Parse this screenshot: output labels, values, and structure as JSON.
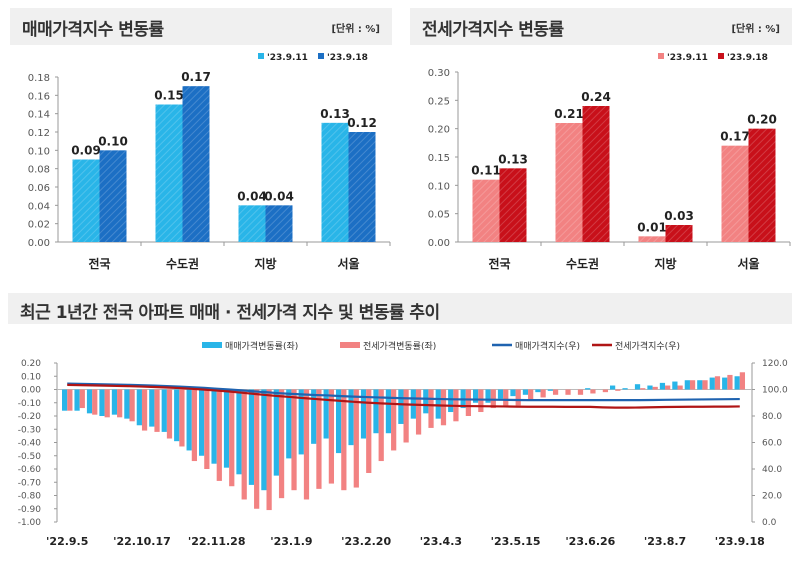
{
  "charts_top": [
    {
      "title": "매매가격지수 변동률",
      "unit": "[단위 : %]"
    },
    {
      "title": "전세가격지수 변동률",
      "unit": "[단위 : %]"
    }
  ],
  "bottom_title": "최근 1년간 전국 아파트 매매 · 전세가격 지수 및 변동률 추이",
  "colors": {
    "sale_light": "#29b5e8",
    "sale_dark": "#1c6fc4",
    "jeonse_light": "#f28282",
    "jeonse_dark": "#c8101a",
    "sale_line": "#1f63b0",
    "jeonse_line": "#b01515"
  },
  "chart_data": [
    {
      "type": "bar",
      "title": "매매가격지수 변동률",
      "categories": [
        "전국",
        "수도권",
        "지방",
        "서울"
      ],
      "series": [
        {
          "name": "'23.9.11",
          "values": [
            0.09,
            0.15,
            0.04,
            0.13
          ]
        },
        {
          "name": "'23.9.18",
          "values": [
            0.1,
            0.17,
            0.04,
            0.12
          ]
        }
      ],
      "ylim": [
        0,
        0.18
      ],
      "yticks": [
        "0.00",
        "0.02",
        "0.04",
        "0.06",
        "0.08",
        "0.10",
        "0.12",
        "0.14",
        "0.16",
        "0.18"
      ],
      "legend": "top-right"
    },
    {
      "type": "bar",
      "title": "전세가격지수 변동률",
      "categories": [
        "전국",
        "수도권",
        "지방",
        "서울"
      ],
      "series": [
        {
          "name": "'23.9.11",
          "values": [
            0.11,
            0.21,
            0.01,
            0.17
          ]
        },
        {
          "name": "'23.9.18",
          "values": [
            0.13,
            0.24,
            0.03,
            0.2
          ]
        }
      ],
      "ylim": [
        0,
        0.3
      ],
      "yticks": [
        "0.00",
        "0.05",
        "0.10",
        "0.15",
        "0.20",
        "0.25",
        "0.30"
      ],
      "legend": "top-right"
    },
    {
      "type": "bar+line",
      "title": "최근 1년간 전국 아파트 매매 · 전세가격 지수 및 변동률 추이",
      "xticks": [
        "'22.9.5",
        "'22.10.17",
        "'22.11.28",
        "'23.1.9",
        "'23.2.20",
        "'23.4.3",
        "'23.5.15",
        "'23.6.26",
        "'23.8.7",
        "'23.9.18"
      ],
      "ylim_left": [
        -1.0,
        0.2
      ],
      "ylim_right": [
        0,
        120
      ],
      "yticks_left": [
        "0.20",
        "0.10",
        "0.00",
        "-0.10",
        "-0.20",
        "-0.30",
        "-0.40",
        "-0.50",
        "-0.60",
        "-0.70",
        "-0.80",
        "-0.90",
        "-1.00"
      ],
      "yticks_right": [
        "120.0",
        "100.0",
        "80.0",
        "60.0",
        "40.0",
        "20.0",
        "0.0"
      ],
      "legend": "top",
      "series": [
        {
          "name": "매매가격변동률(좌)",
          "axis": "left",
          "kind": "bar",
          "values": [
            -0.16,
            -0.16,
            -0.18,
            -0.2,
            -0.19,
            -0.22,
            -0.27,
            -0.28,
            -0.32,
            -0.39,
            -0.46,
            -0.5,
            -0.56,
            -0.59,
            -0.64,
            -0.72,
            -0.76,
            -0.65,
            -0.52,
            -0.49,
            -0.41,
            -0.37,
            -0.48,
            -0.42,
            -0.37,
            -0.33,
            -0.33,
            -0.26,
            -0.22,
            -0.18,
            -0.22,
            -0.17,
            -0.14,
            -0.1,
            -0.1,
            -0.07,
            -0.05,
            -0.04,
            -0.02,
            -0.01,
            0.0,
            0.0,
            0.01,
            0.0,
            0.03,
            0.01,
            0.04,
            0.03,
            0.05,
            0.06,
            0.07,
            0.07,
            0.09,
            0.09,
            0.1
          ]
        },
        {
          "name": "전세가격변동률(좌)",
          "axis": "left",
          "kind": "bar",
          "values": [
            -0.16,
            -0.14,
            -0.19,
            -0.21,
            -0.21,
            -0.24,
            -0.31,
            -0.32,
            -0.37,
            -0.43,
            -0.54,
            -0.6,
            -0.69,
            -0.73,
            -0.83,
            -0.9,
            -0.91,
            -0.82,
            -0.76,
            -0.83,
            -0.75,
            -0.71,
            -0.76,
            -0.74,
            -0.63,
            -0.54,
            -0.46,
            -0.4,
            -0.34,
            -0.29,
            -0.27,
            -0.24,
            -0.2,
            -0.17,
            -0.14,
            -0.12,
            -0.12,
            -0.08,
            -0.06,
            -0.04,
            -0.04,
            -0.04,
            -0.03,
            -0.02,
            -0.01,
            0.0,
            0.01,
            0.02,
            0.03,
            0.03,
            0.07,
            0.07,
            0.1,
            0.11,
            0.13
          ]
        },
        {
          "name": "매매가격지수(우)",
          "axis": "right",
          "kind": "line",
          "values": [
            104.5,
            104.3,
            104.1,
            103.9,
            103.7,
            103.5,
            103.2,
            102.9,
            102.6,
            102.2,
            101.7,
            101.2,
            100.6,
            100.0,
            99.4,
            98.6,
            97.9,
            97.2,
            96.7,
            96.2,
            95.8,
            95.5,
            95.0,
            94.6,
            94.3,
            94.0,
            93.7,
            93.4,
            93.2,
            93.0,
            92.8,
            92.6,
            92.5,
            92.4,
            92.3,
            92.2,
            92.1,
            92.0,
            92.0,
            92.0,
            92.0,
            92.0,
            92.0,
            92.0,
            92.0,
            92.0,
            92.0,
            92.1,
            92.2,
            92.3,
            92.4,
            92.5,
            92.6,
            92.7,
            92.8
          ]
        },
        {
          "name": "전세가격지수(우)",
          "axis": "right",
          "kind": "line",
          "values": [
            103.5,
            103.3,
            103.1,
            102.9,
            102.7,
            102.5,
            102.2,
            101.9,
            101.5,
            101.1,
            100.5,
            99.9,
            99.2,
            98.5,
            97.6,
            96.7,
            95.8,
            95.0,
            94.3,
            93.5,
            92.8,
            92.1,
            91.4,
            90.7,
            90.1,
            89.6,
            89.2,
            88.8,
            88.5,
            88.2,
            87.9,
            87.7,
            87.5,
            87.4,
            87.3,
            87.2,
            87.1,
            87.0,
            87.0,
            87.0,
            86.9,
            86.9,
            86.9,
            86.5,
            86.3,
            86.3,
            86.4,
            86.6,
            86.8,
            86.9,
            87.0,
            87.0,
            87.1,
            87.1,
            87.2
          ]
        }
      ]
    }
  ]
}
